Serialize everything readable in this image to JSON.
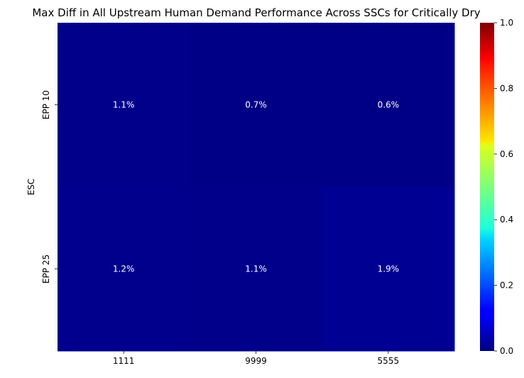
{
  "chart_data": {
    "type": "heatmap",
    "title": "Max Diff in All Upstream Human Demand Performance Across SSCs for Critically Dry",
    "xlabel": "",
    "ylabel": "ESC",
    "x_categories": [
      "1111",
      "9999",
      "5555"
    ],
    "y_categories": [
      "EPP 10",
      "EPP 25"
    ],
    "values": [
      [
        0.011,
        0.007,
        0.006
      ],
      [
        0.012,
        0.011,
        0.019
      ]
    ],
    "annotations": [
      [
        "1.1%",
        "0.7%",
        "0.6%"
      ],
      [
        "1.2%",
        "1.1%",
        "1.9%"
      ]
    ],
    "colormap": "jet",
    "vmin": 0.0,
    "vmax": 1.0,
    "colorbar_ticks": [
      {
        "value": 0.0,
        "label": "0.0"
      },
      {
        "value": 0.2,
        "label": "0.2"
      },
      {
        "value": 0.4,
        "label": "0.4"
      },
      {
        "value": 0.6,
        "label": "0.6"
      },
      {
        "value": 0.8,
        "label": "0.8"
      },
      {
        "value": 1.0,
        "label": "1.0"
      }
    ]
  },
  "colors": {
    "text": "#000000",
    "annotation_text": "#ffffff",
    "background": "#ffffff"
  }
}
